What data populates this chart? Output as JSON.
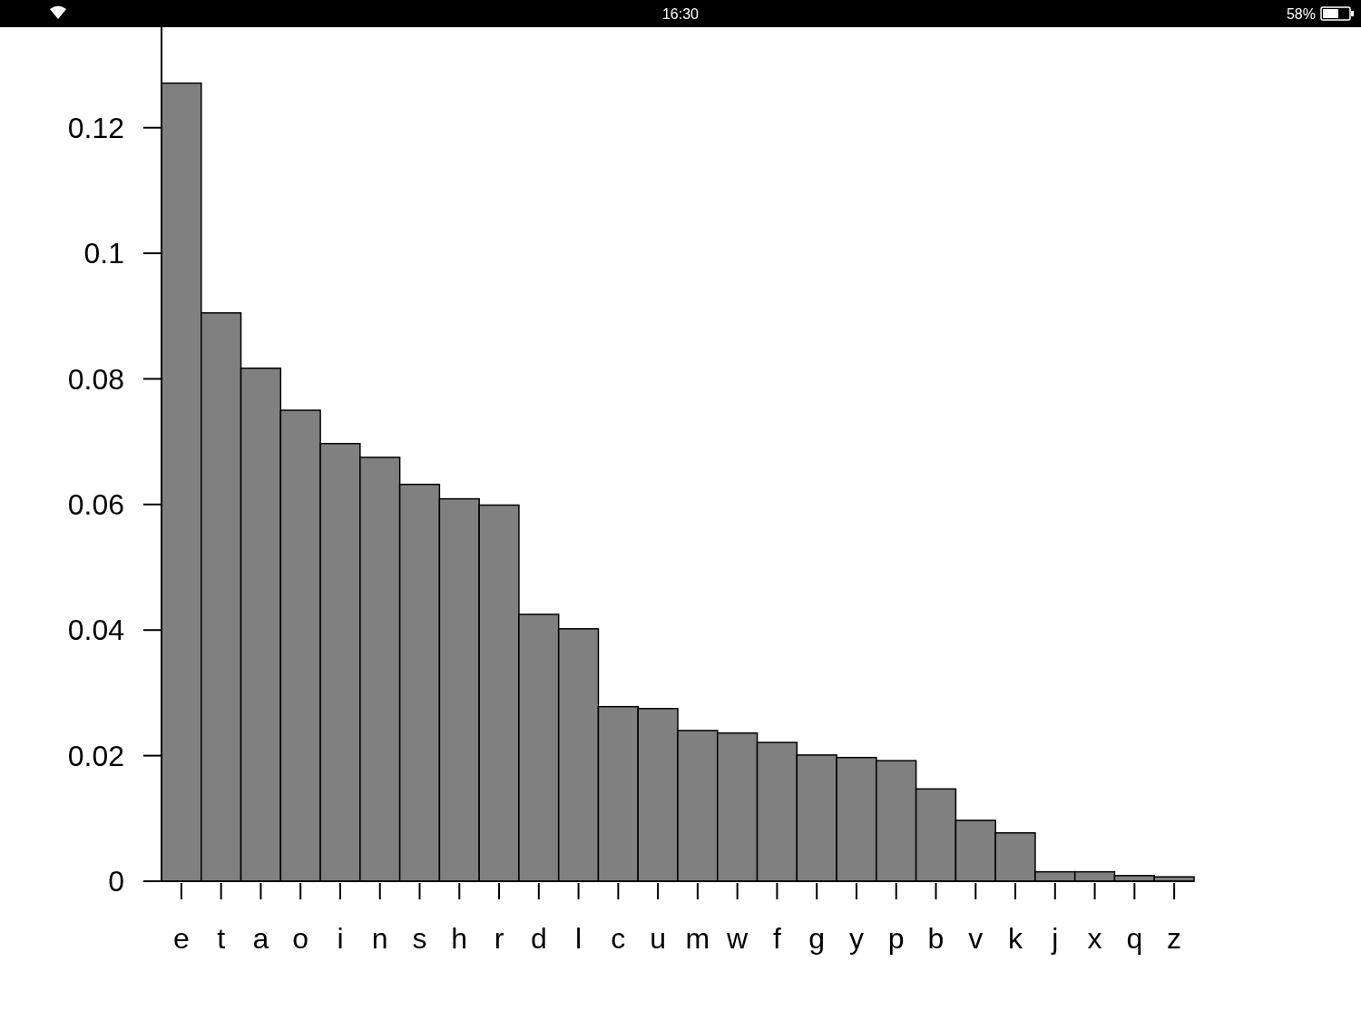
{
  "chart_data": {
    "type": "bar",
    "categories": [
      "e",
      "t",
      "a",
      "o",
      "i",
      "n",
      "s",
      "h",
      "r",
      "d",
      "l",
      "c",
      "u",
      "m",
      "w",
      "f",
      "g",
      "y",
      "p",
      "b",
      "v",
      "k",
      "j",
      "x",
      "q",
      "z"
    ],
    "values": [
      0.1271,
      0.0905,
      0.0817,
      0.075,
      0.0697,
      0.0675,
      0.0632,
      0.0609,
      0.0599,
      0.0425,
      0.0402,
      0.0278,
      0.0275,
      0.024,
      0.0236,
      0.0221,
      0.0201,
      0.0197,
      0.0192,
      0.0147,
      0.0097,
      0.0077,
      0.0015,
      0.0015,
      0.0009,
      0.0007
    ],
    "color": "#808080",
    "ylim": [
      0,
      0.136
    ],
    "yticks": [
      0,
      0.02,
      0.04,
      0.06,
      0.08,
      0.1,
      0.12
    ],
    "grid": false,
    "annotations": [
      "16:30",
      "58%"
    ]
  }
}
